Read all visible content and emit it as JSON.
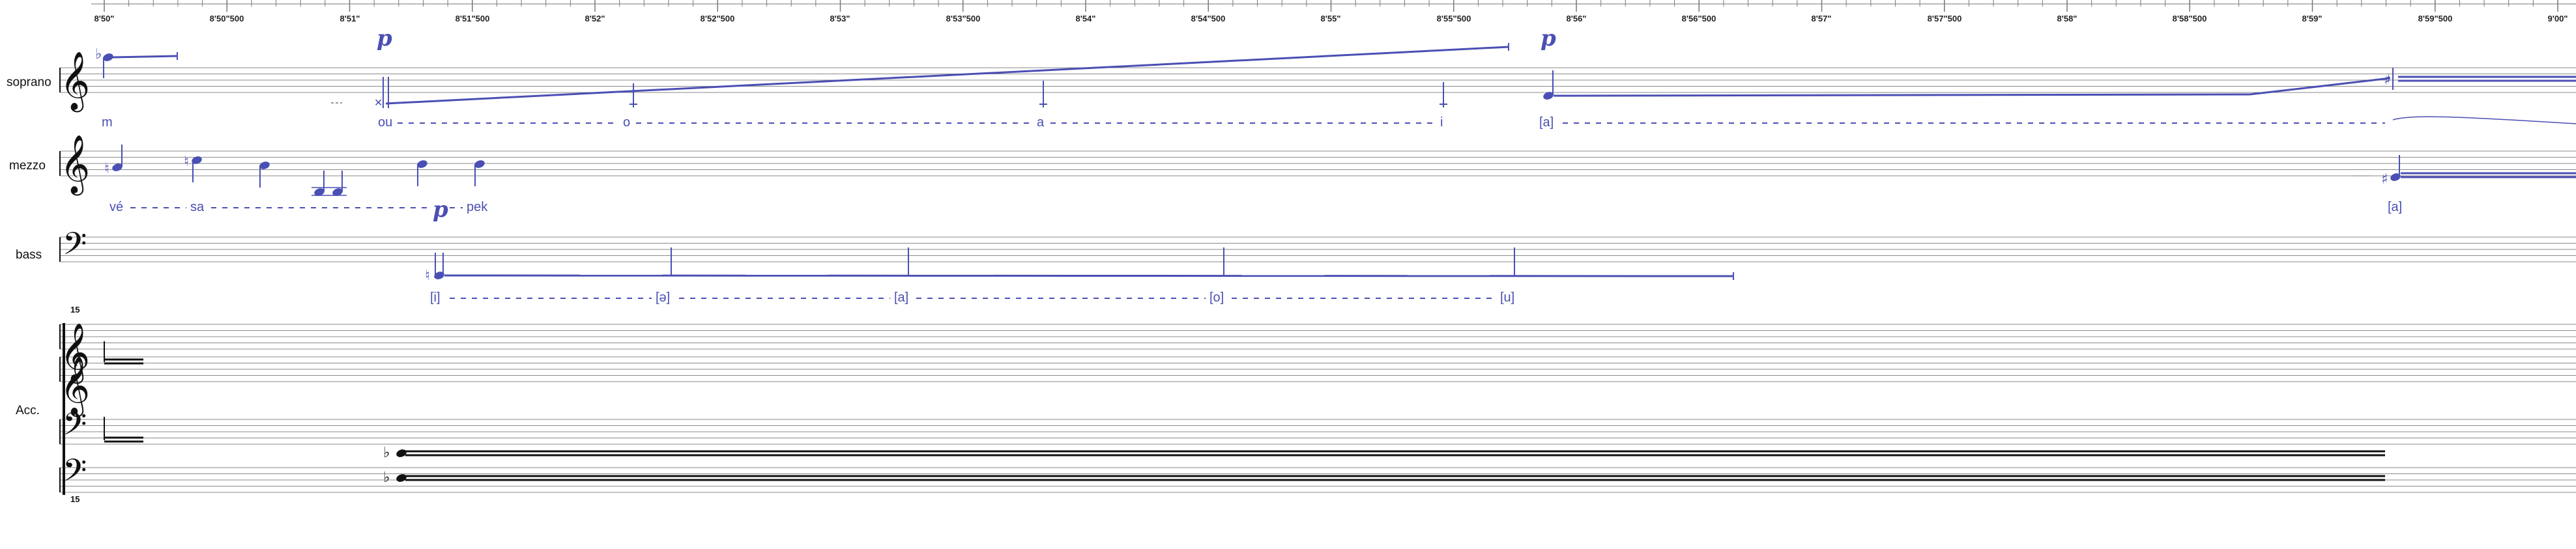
{
  "timeline": {
    "labels": [
      "8'50\"",
      "8'50\"500",
      "8'51\"",
      "8'51\"500",
      "8'52\"",
      "8'52\"500",
      "8'53\"",
      "8'53\"500",
      "8'54\"",
      "8'54\"500",
      "8'55\"",
      "8'55\"500",
      "8'56\"",
      "8'56\"500",
      "8'57\"",
      "8'57\"500",
      "8'58\"",
      "8'58\"500",
      "8'59\"",
      "8'59\"500",
      "9'00\""
    ]
  },
  "instruments": {
    "soprano": "soprano",
    "mezzo": "mezzo",
    "bass": "bass",
    "acc": "Acc."
  },
  "dynamics": {
    "soprano_1": "p",
    "soprano_2": "p",
    "mezzo_1": "p"
  },
  "lyrics": {
    "soprano": [
      "m",
      "ou",
      "o",
      "a",
      "i",
      "[a]"
    ],
    "mezzo": [
      "vé",
      "sa",
      "pek",
      "[a]"
    ],
    "bass": [
      "[i]",
      "[ə]",
      "[a]",
      "[o]",
      "[u]"
    ]
  },
  "acc_marks": {
    "top": "15",
    "bottom": "15"
  },
  "colors": {
    "ink": "#111111",
    "voice": "#4a4fb4",
    "staff": "#8a8a8a"
  }
}
